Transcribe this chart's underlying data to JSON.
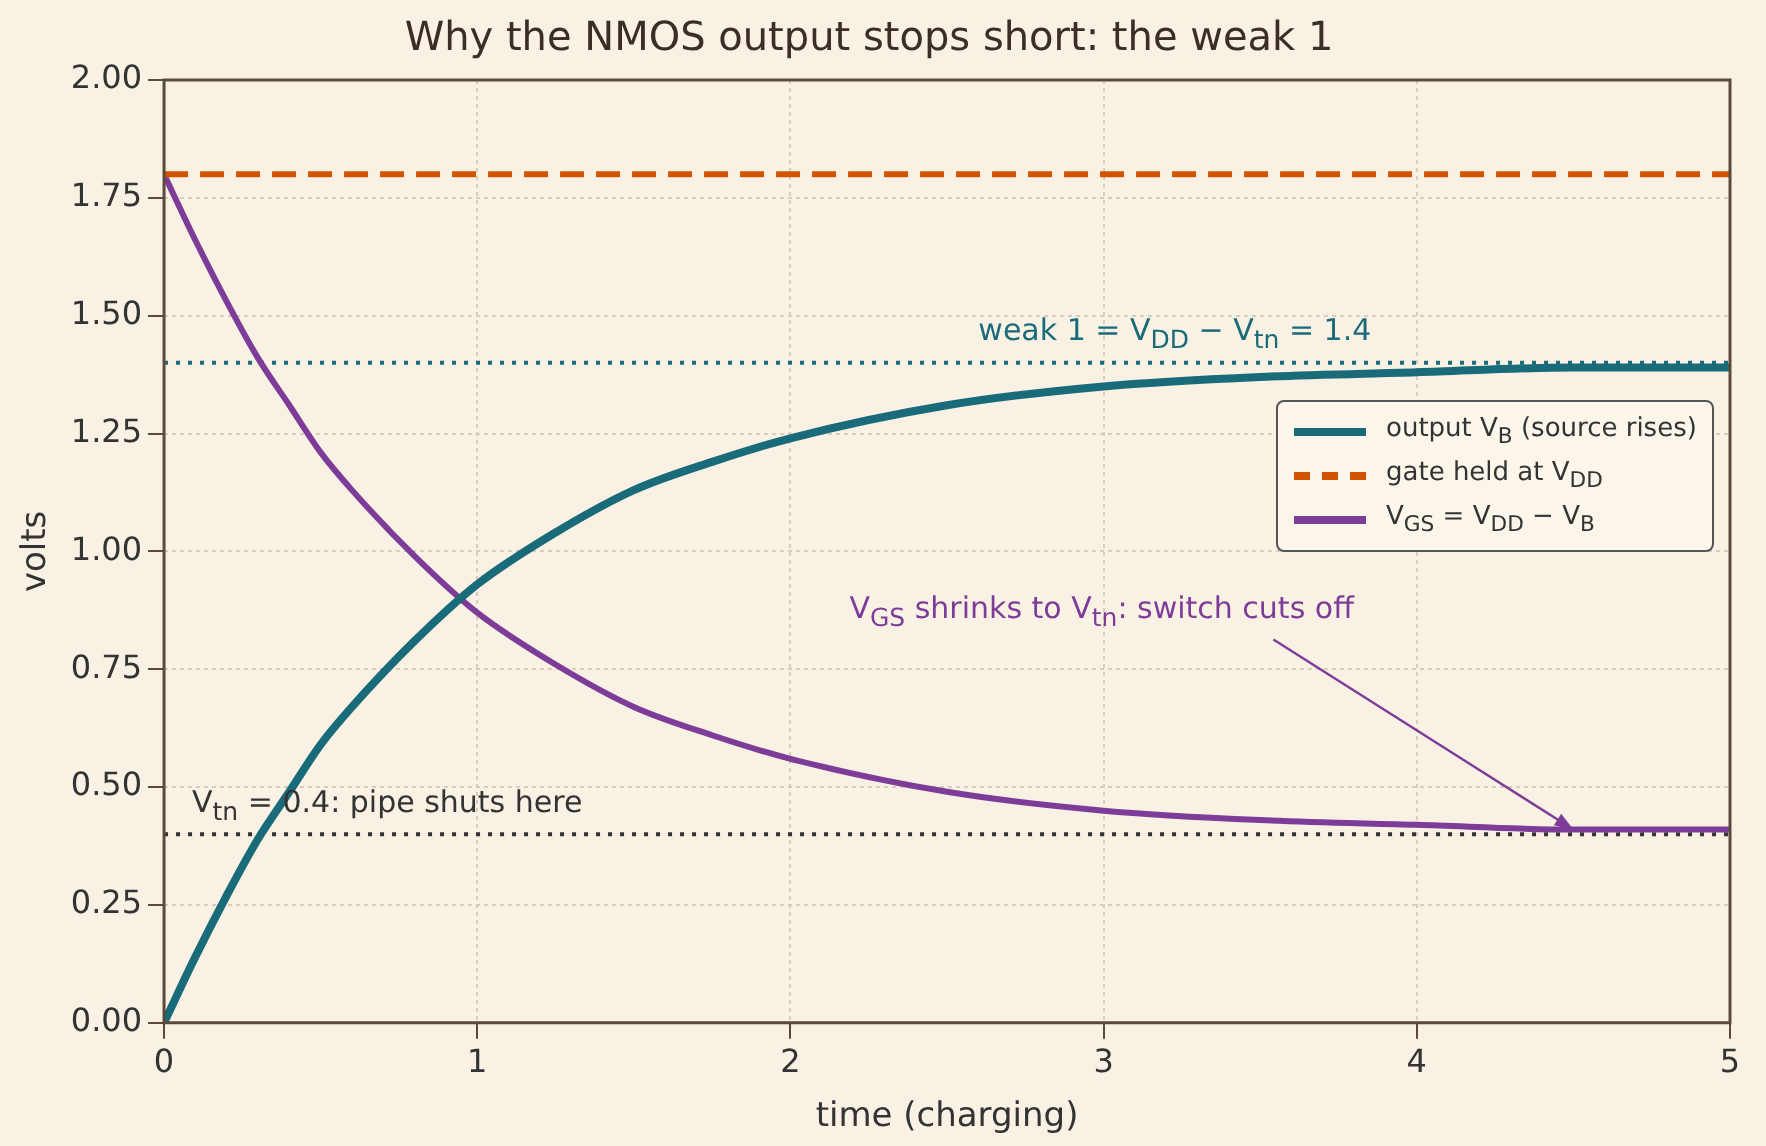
{
  "chart_data": {
    "type": "line",
    "title": "Why the NMOS output stops short: the weak 1",
    "xlabel": "time (charging)",
    "ylabel": "volts",
    "x": [
      0,
      0.1,
      0.2,
      0.3,
      0.4,
      0.5,
      0.6,
      0.8,
      1,
      1.25,
      1.5,
      1.75,
      2,
      2.5,
      3,
      3.5,
      4,
      4.5,
      5
    ],
    "series": [
      {
        "name": "output V$_{B}$ (source rises)",
        "color": "#1a6b7a",
        "values": [
          0,
          0.14,
          0.27,
          0.39,
          0.49,
          0.59,
          0.67,
          0.81,
          0.93,
          1.04,
          1.13,
          1.19,
          1.24,
          1.31,
          1.35,
          1.37,
          1.38,
          1.39,
          1.39
        ]
      },
      {
        "name": "gate held at V$_{DD}$",
        "color": "#d35400",
        "line_style": "dashed",
        "values": [
          1.8,
          1.8,
          1.8,
          1.8,
          1.8,
          1.8,
          1.8,
          1.8,
          1.8,
          1.8,
          1.8,
          1.8,
          1.8,
          1.8,
          1.8,
          1.8,
          1.8,
          1.8,
          1.8
        ]
      },
      {
        "name": "V$_{GS}$ = V$_{DD}$ − V$_{B}$",
        "color": "#7d3c98",
        "values": [
          1.8,
          1.66,
          1.53,
          1.41,
          1.31,
          1.21,
          1.13,
          0.99,
          0.87,
          0.76,
          0.67,
          0.61,
          0.56,
          0.49,
          0.45,
          0.43,
          0.42,
          0.41,
          0.41
        ]
      }
    ],
    "xlim": [
      0,
      5
    ],
    "xticks": [
      0,
      1,
      2,
      3,
      4,
      5
    ],
    "ylim": [
      0,
      2
    ],
    "yticks": [
      {
        "value": 0,
        "label": "0.00"
      },
      {
        "value": 0.25,
        "label": "0.25"
      },
      {
        "value": 0.5,
        "label": "0.50"
      },
      {
        "value": 0.75,
        "label": "0.75"
      },
      {
        "value": 1,
        "label": "1.00"
      },
      {
        "value": 1.25,
        "label": "1.25"
      },
      {
        "value": 1.5,
        "label": "1.50"
      },
      {
        "value": 1.75,
        "label": "1.75"
      },
      {
        "value": 2,
        "label": "2.00"
      }
    ],
    "ref_lines": [
      {
        "axis": "y",
        "value": 1.4,
        "label": "weak 1 = V$_{DD}$ − V$_{tn}$ = 1.4",
        "color": "#1a6b7a",
        "line_style": "dotted"
      },
      {
        "axis": "y",
        "value": 0.4,
        "label": "V$_{tn}$ = 0.4: pipe shuts here",
        "color": "#333333",
        "line_style": "dotted"
      }
    ],
    "annotations": [
      {
        "text": "V$_{GS}$ shrinks to V$_{tn}$: switch cuts off",
        "x": 4.5,
        "y": 0.41
      }
    ],
    "grid": true,
    "legend": "right",
    "marker": "none",
    "line_style": "solid"
  }
}
